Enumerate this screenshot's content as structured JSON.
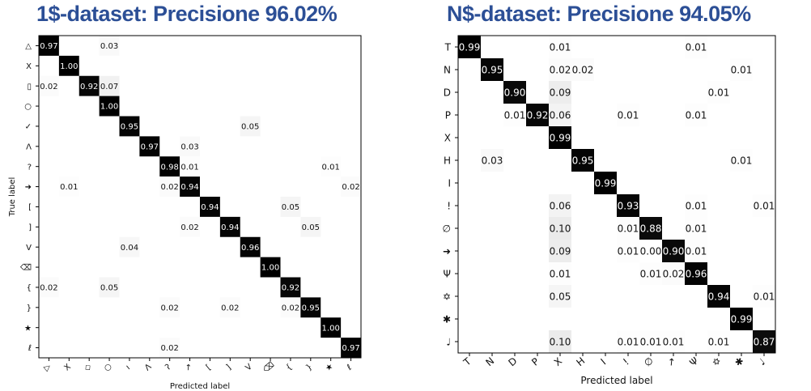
{
  "chart_data": [
    {
      "type": "heatmap",
      "title": "1$-dataset: Precisione 96.02%",
      "xlabel": "Predicted label",
      "ylabel": "True label",
      "x_ticklabels": [
        "▷",
        "X",
        "◇",
        "○",
        "ı",
        "Λ",
        "ʔ",
        "↗",
        "[",
        "]",
        "V",
        "⌫",
        "{",
        "}",
        "★",
        "ℓ"
      ],
      "y_ticklabels": [
        "△",
        "X",
        "▯",
        "○",
        "✓",
        "Λ",
        "?",
        "➜",
        "[",
        "]",
        "V",
        "⌫",
        "{",
        "}",
        "★",
        "ℓ"
      ],
      "cells": [
        [
          0,
          0,
          "0.97"
        ],
        [
          0,
          3,
          "0.03"
        ],
        [
          1,
          1,
          "1.00"
        ],
        [
          2,
          0,
          "0.02"
        ],
        [
          2,
          2,
          "0.92"
        ],
        [
          2,
          3,
          "0.07"
        ],
        [
          3,
          3,
          "1.00"
        ],
        [
          4,
          4,
          "0.95"
        ],
        [
          4,
          10,
          "0.05"
        ],
        [
          5,
          5,
          "0.97"
        ],
        [
          5,
          7,
          "0.03"
        ],
        [
          6,
          6,
          "0.98"
        ],
        [
          6,
          7,
          "0.01"
        ],
        [
          6,
          14,
          "0.01"
        ],
        [
          7,
          1,
          "0.01"
        ],
        [
          7,
          6,
          "0.02"
        ],
        [
          7,
          7,
          "0.94"
        ],
        [
          7,
          15,
          "0.02"
        ],
        [
          8,
          8,
          "0.94"
        ],
        [
          8,
          12,
          "0.05"
        ],
        [
          9,
          7,
          "0.02"
        ],
        [
          9,
          9,
          "0.94"
        ],
        [
          9,
          13,
          "0.05"
        ],
        [
          10,
          4,
          "0.04"
        ],
        [
          10,
          10,
          "0.96"
        ],
        [
          11,
          11,
          "1.00"
        ],
        [
          12,
          0,
          "0.02"
        ],
        [
          12,
          3,
          "0.05"
        ],
        [
          12,
          12,
          "0.92"
        ],
        [
          13,
          6,
          "0.02"
        ],
        [
          13,
          9,
          "0.02"
        ],
        [
          13,
          12,
          "0.02"
        ],
        [
          13,
          13,
          "0.95"
        ],
        [
          14,
          14,
          "1.00"
        ],
        [
          15,
          6,
          "0.02"
        ],
        [
          15,
          15,
          "0.97"
        ]
      ],
      "colormap": "greys",
      "grid": false
    },
    {
      "type": "heatmap",
      "title": "N$-dataset: Precisione 94.05%",
      "xlabel": "Predicted label",
      "ylabel": "",
      "x_ticklabels": [
        "T",
        "N",
        "D",
        "P",
        "X",
        "H",
        "I",
        "!",
        "∅",
        "↗",
        "Ψ",
        "✡",
        "✱",
        "♩"
      ],
      "y_ticklabels": [
        "T",
        "N",
        "D",
        "P",
        "X",
        "H",
        "I",
        "!",
        "∅",
        "➜",
        "Ψ",
        "✡",
        "✱",
        "♩"
      ],
      "cells": [
        [
          0,
          0,
          "0.99"
        ],
        [
          0,
          4,
          "0.01"
        ],
        [
          0,
          10,
          "0.01"
        ],
        [
          1,
          1,
          "0.95"
        ],
        [
          1,
          4,
          "0.02"
        ],
        [
          1,
          5,
          "0.02"
        ],
        [
          1,
          12,
          "0.01"
        ],
        [
          2,
          2,
          "0.90"
        ],
        [
          2,
          4,
          "0.09"
        ],
        [
          2,
          11,
          "0.01"
        ],
        [
          3,
          2,
          "0.01"
        ],
        [
          3,
          3,
          "0.92"
        ],
        [
          3,
          4,
          "0.06"
        ],
        [
          3,
          7,
          "0.01"
        ],
        [
          3,
          10,
          "0.01"
        ],
        [
          4,
          4,
          "0.99"
        ],
        [
          5,
          1,
          "0.03"
        ],
        [
          5,
          5,
          "0.95"
        ],
        [
          5,
          12,
          "0.01"
        ],
        [
          6,
          6,
          "0.99"
        ],
        [
          7,
          4,
          "0.06"
        ],
        [
          7,
          7,
          "0.93"
        ],
        [
          7,
          10,
          "0.01"
        ],
        [
          7,
          13,
          "0.01"
        ],
        [
          8,
          4,
          "0.10"
        ],
        [
          8,
          7,
          "0.01"
        ],
        [
          8,
          8,
          "0.88"
        ],
        [
          8,
          10,
          "0.01"
        ],
        [
          9,
          4,
          "0.09"
        ],
        [
          9,
          7,
          "0.01"
        ],
        [
          9,
          8,
          "0.00"
        ],
        [
          9,
          9,
          "0.90"
        ],
        [
          9,
          10,
          "0.01"
        ],
        [
          10,
          4,
          "0.01"
        ],
        [
          10,
          8,
          "0.01"
        ],
        [
          10,
          9,
          "0.02"
        ],
        [
          10,
          10,
          "0.96"
        ],
        [
          11,
          4,
          "0.05"
        ],
        [
          11,
          11,
          "0.94"
        ],
        [
          11,
          13,
          "0.01"
        ],
        [
          12,
          12,
          "0.99"
        ],
        [
          13,
          4,
          "0.10"
        ],
        [
          13,
          7,
          "0.01"
        ],
        [
          13,
          8,
          "0.01"
        ],
        [
          13,
          9,
          "0.01"
        ],
        [
          13,
          11,
          "0.01"
        ],
        [
          13,
          13,
          "0.87"
        ]
      ],
      "colormap": "greys",
      "grid": false
    }
  ]
}
